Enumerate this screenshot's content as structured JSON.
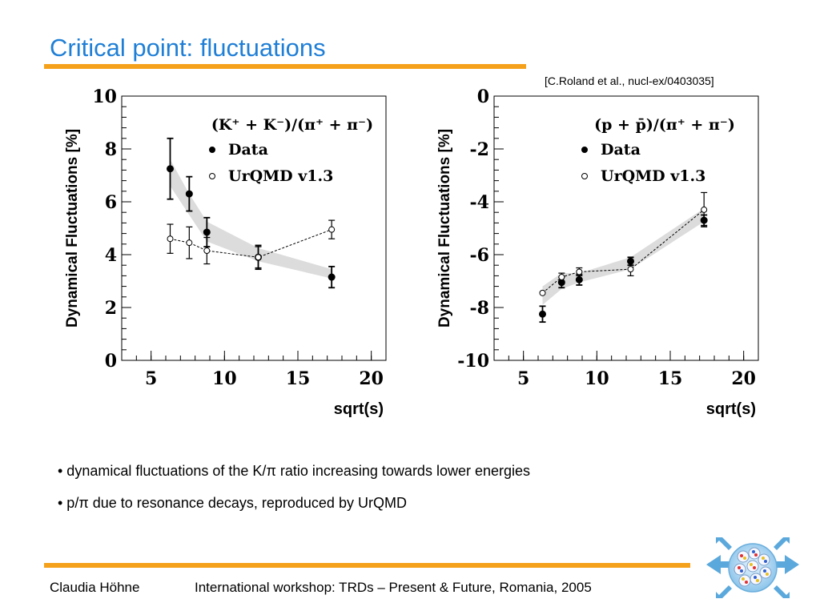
{
  "slide": {
    "title": "Critical point: fluctuations",
    "citation": "[C.Roland et al., nucl-ex/0403035]",
    "bullets": [
      "• dynamical fluctuations of the K/π ratio increasing towards lower energies",
      "• p/π due to resonance decays, reproduced by UrQMD"
    ],
    "footer": {
      "author": "Claudia Höhne",
      "event": "International workshop: TRDs – Present & Future, Romania, 2005"
    },
    "colors": {
      "title": "#1f7fd6",
      "rule": "#f5a11c",
      "band": "#dcdcdc"
    },
    "logo_icon": "quark-gluon-logo-icon"
  },
  "chart_data": [
    {
      "type": "scatter",
      "title": "(K⁺ + K⁻)/(π⁺ + π⁻)",
      "xlabel": "sqrt(s)",
      "ylabel": "Dynamical Fluctuations [%]",
      "xlim": [
        3,
        21
      ],
      "ylim": [
        0,
        10
      ],
      "xticks": [
        5,
        10,
        15,
        20
      ],
      "yticks": [
        0,
        2,
        4,
        6,
        8,
        10
      ],
      "legend_position": "top-right",
      "series": [
        {
          "name": "Data",
          "marker": "filled-circle",
          "x": [
            6.3,
            7.6,
            8.8,
            12.3,
            17.3
          ],
          "y": [
            7.25,
            6.3,
            4.85,
            3.9,
            3.15
          ],
          "err": [
            1.15,
            0.65,
            0.55,
            0.45,
            0.4
          ]
        },
        {
          "name": "UrQMD v1.3",
          "marker": "open-circle",
          "line": "dashed",
          "x": [
            6.3,
            7.6,
            8.8,
            12.3,
            17.3
          ],
          "y": [
            4.6,
            4.45,
            4.15,
            3.9,
            4.95
          ],
          "err": [
            0.55,
            0.6,
            0.5,
            0.4,
            0.35
          ]
        }
      ],
      "band": {
        "x": [
          6.3,
          7.6,
          8.8,
          12.3,
          17.3
        ],
        "low": [
          6.6,
          5.5,
          4.5,
          3.75,
          3.1
        ],
        "high": [
          7.6,
          6.3,
          5.25,
          4.25,
          3.45
        ]
      }
    },
    {
      "type": "scatter",
      "title": "(p + p̄)/(π⁺ + π⁻)",
      "xlabel": "sqrt(s)",
      "ylabel": "Dynamical Fluctuations [%]",
      "xlim": [
        3,
        21
      ],
      "ylim": [
        -10,
        0
      ],
      "xticks": [
        5,
        10,
        15,
        20
      ],
      "yticks": [
        -10,
        -8,
        -6,
        -4,
        -2,
        0
      ],
      "legend_position": "top-right",
      "series": [
        {
          "name": "Data",
          "marker": "filled-circle",
          "x": [
            6.3,
            7.6,
            8.8,
            12.3,
            17.3
          ],
          "y": [
            -8.25,
            -7.05,
            -6.95,
            -6.25,
            -4.7
          ],
          "err": [
            0.3,
            0.2,
            0.2,
            0.15,
            0.2
          ]
        },
        {
          "name": "UrQMD v1.3",
          "marker": "open-circle",
          "line": "dashed",
          "x": [
            6.3,
            7.6,
            8.8,
            12.3,
            17.3
          ],
          "y": [
            -7.45,
            -6.85,
            -6.65,
            -6.55,
            -4.3
          ],
          "err": [
            0.0,
            0.15,
            0.15,
            0.25,
            0.65
          ]
        }
      ],
      "band": {
        "x": [
          6.3,
          7.6,
          8.8,
          12.3,
          17.3
        ],
        "low": [
          -7.9,
          -7.3,
          -7.05,
          -6.55,
          -4.75
        ],
        "high": [
          -7.2,
          -6.7,
          -6.7,
          -6.1,
          -4.25
        ]
      }
    }
  ]
}
